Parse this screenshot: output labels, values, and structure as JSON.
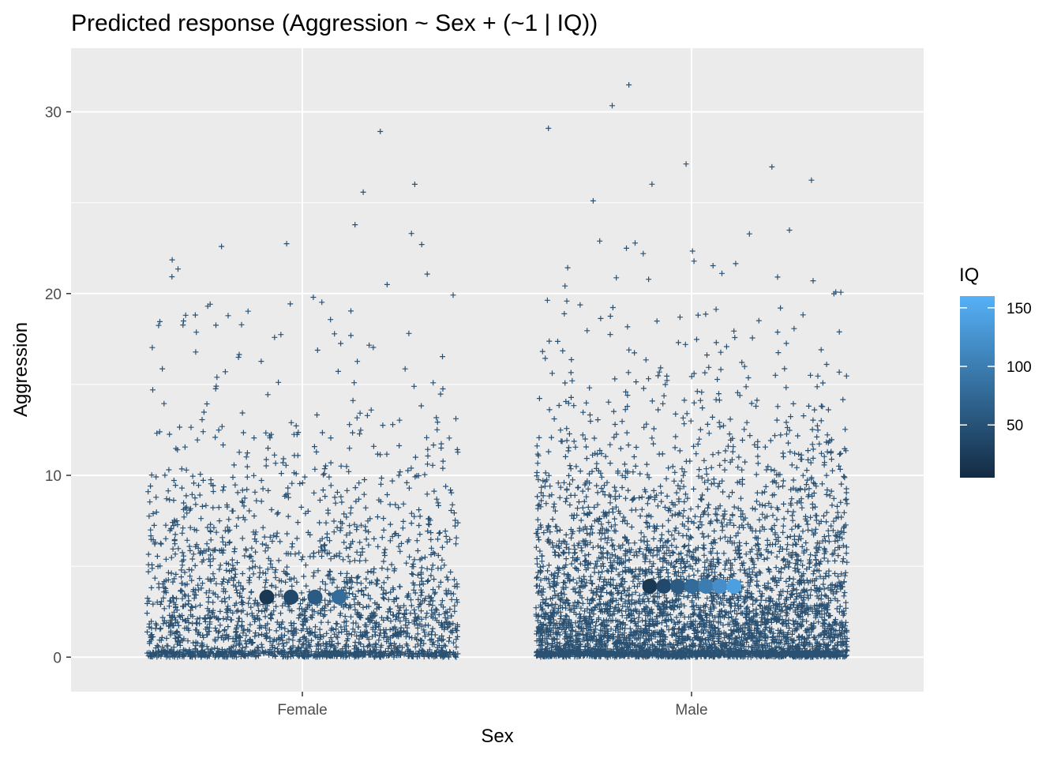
{
  "chart_data": {
    "type": "scatter",
    "title": "Predicted response (Aggression ~ Sex + (~1 | IQ))",
    "xlabel": "Sex",
    "ylabel": "Aggression",
    "categories": [
      "Female",
      "Male"
    ],
    "ylim": [
      -1.9,
      33.5
    ],
    "yticks": [
      0,
      10,
      20,
      30
    ],
    "grid": true,
    "legend": {
      "title": "IQ",
      "placement": "right",
      "range": [
        5,
        160
      ],
      "ticks": [
        50,
        100,
        150
      ],
      "color_low": "#132b43",
      "color_high": "#56b1f7"
    },
    "raw_points": {
      "marker": "plus",
      "color": "#2b5172",
      "female": {
        "count": 2300,
        "y_max": 30.8
      },
      "male": {
        "count": 4600,
        "y_max": 32.0
      }
    },
    "predicted": {
      "marker": "circle",
      "series": [
        {
          "category": "Female",
          "points": [
            {
              "iq": 20,
              "y": 3.3
            },
            {
              "iq": 40,
              "y": 3.3
            },
            {
              "iq": 60,
              "y": 3.3
            },
            {
              "iq": 80,
              "y": 3.3
            }
          ]
        },
        {
          "category": "Male",
          "points": [
            {
              "iq": 20,
              "y": 3.9
            },
            {
              "iq": 40,
              "y": 3.9
            },
            {
              "iq": 60,
              "y": 3.9
            },
            {
              "iq": 80,
              "y": 3.9
            },
            {
              "iq": 100,
              "y": 3.9
            },
            {
              "iq": 120,
              "y": 3.9
            },
            {
              "iq": 140,
              "y": 3.9
            }
          ]
        }
      ]
    }
  }
}
